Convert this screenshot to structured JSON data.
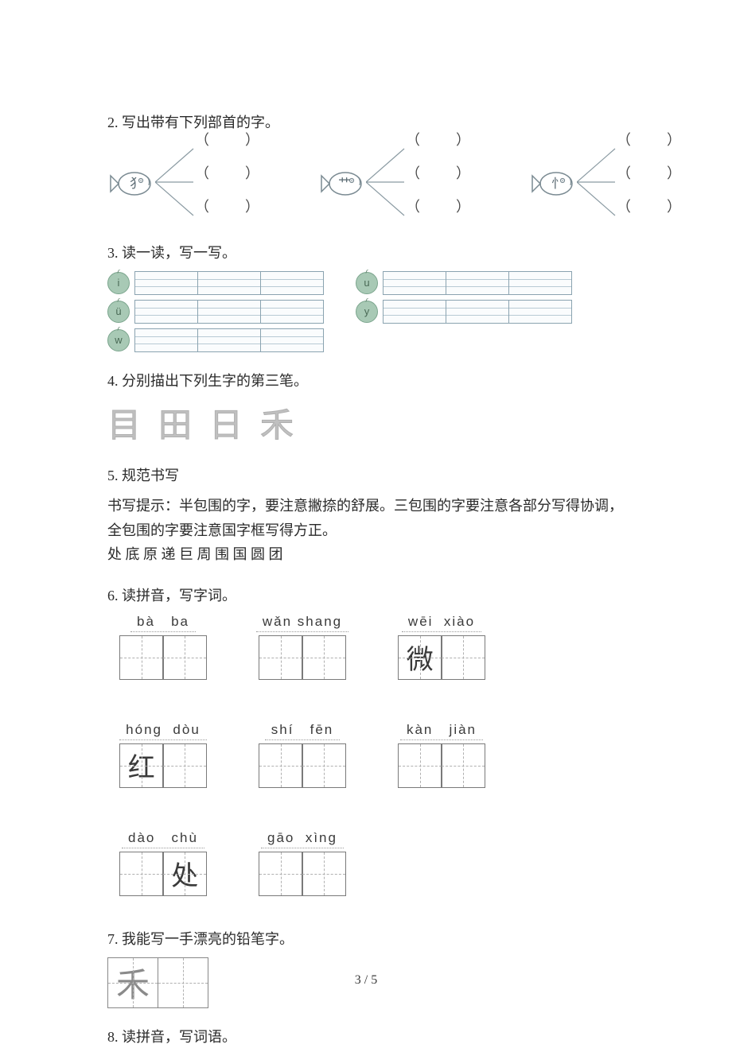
{
  "q2": {
    "title": "2. 写出带有下列部首的字。",
    "radicals": [
      "犭",
      "艹",
      "忄"
    ],
    "paren": "（          ）"
  },
  "q3": {
    "title": "3. 读一读，写一写。",
    "left_labels": [
      "i",
      "ü",
      "w"
    ],
    "right_labels": [
      "u",
      "y"
    ]
  },
  "q4": {
    "title": "4. 分别描出下列生字的第三笔。",
    "chars": [
      "目",
      "田",
      "日",
      "禾"
    ]
  },
  "q5": {
    "title": "5. 规范书写",
    "line1": "书写提示：半包围的字，要注意撇捺的舒展。三包围的字要注意各部分写得协调，全包围的字要注意国字框写得方正。",
    "line2": "处 底 原 递 巨 周 围 国 圆 团"
  },
  "q6": {
    "title": "6. 读拼音，写字词。",
    "items": [
      {
        "pinyin": "bà   ba",
        "fill": [
          "",
          ""
        ]
      },
      {
        "pinyin": "wǎn shang",
        "fill": [
          "",
          ""
        ]
      },
      {
        "pinyin": "wēi  xiào",
        "fill": [
          "微",
          ""
        ]
      },
      {
        "pinyin": "hóng  dòu",
        "fill": [
          "红",
          ""
        ]
      },
      {
        "pinyin": "shí   fēn",
        "fill": [
          "",
          ""
        ]
      },
      {
        "pinyin": "kàn   jiàn",
        "fill": [
          "",
          ""
        ]
      },
      {
        "pinyin": "dào   chù",
        "fill": [
          "",
          "处"
        ]
      },
      {
        "pinyin": "gāo  xìng",
        "fill": [
          "",
          ""
        ]
      }
    ]
  },
  "q7": {
    "title": "7. 我能写一手漂亮的铅笔字。",
    "char": "禾"
  },
  "q8": {
    "title": "8. 读拼音，写词语。"
  },
  "footer": "3 / 5",
  "colors": {
    "text": "#2a2a2a",
    "apple_bg": "#a8c9b5",
    "grid_border": "#7a7a7a",
    "dash": "#b0b0b0"
  }
}
